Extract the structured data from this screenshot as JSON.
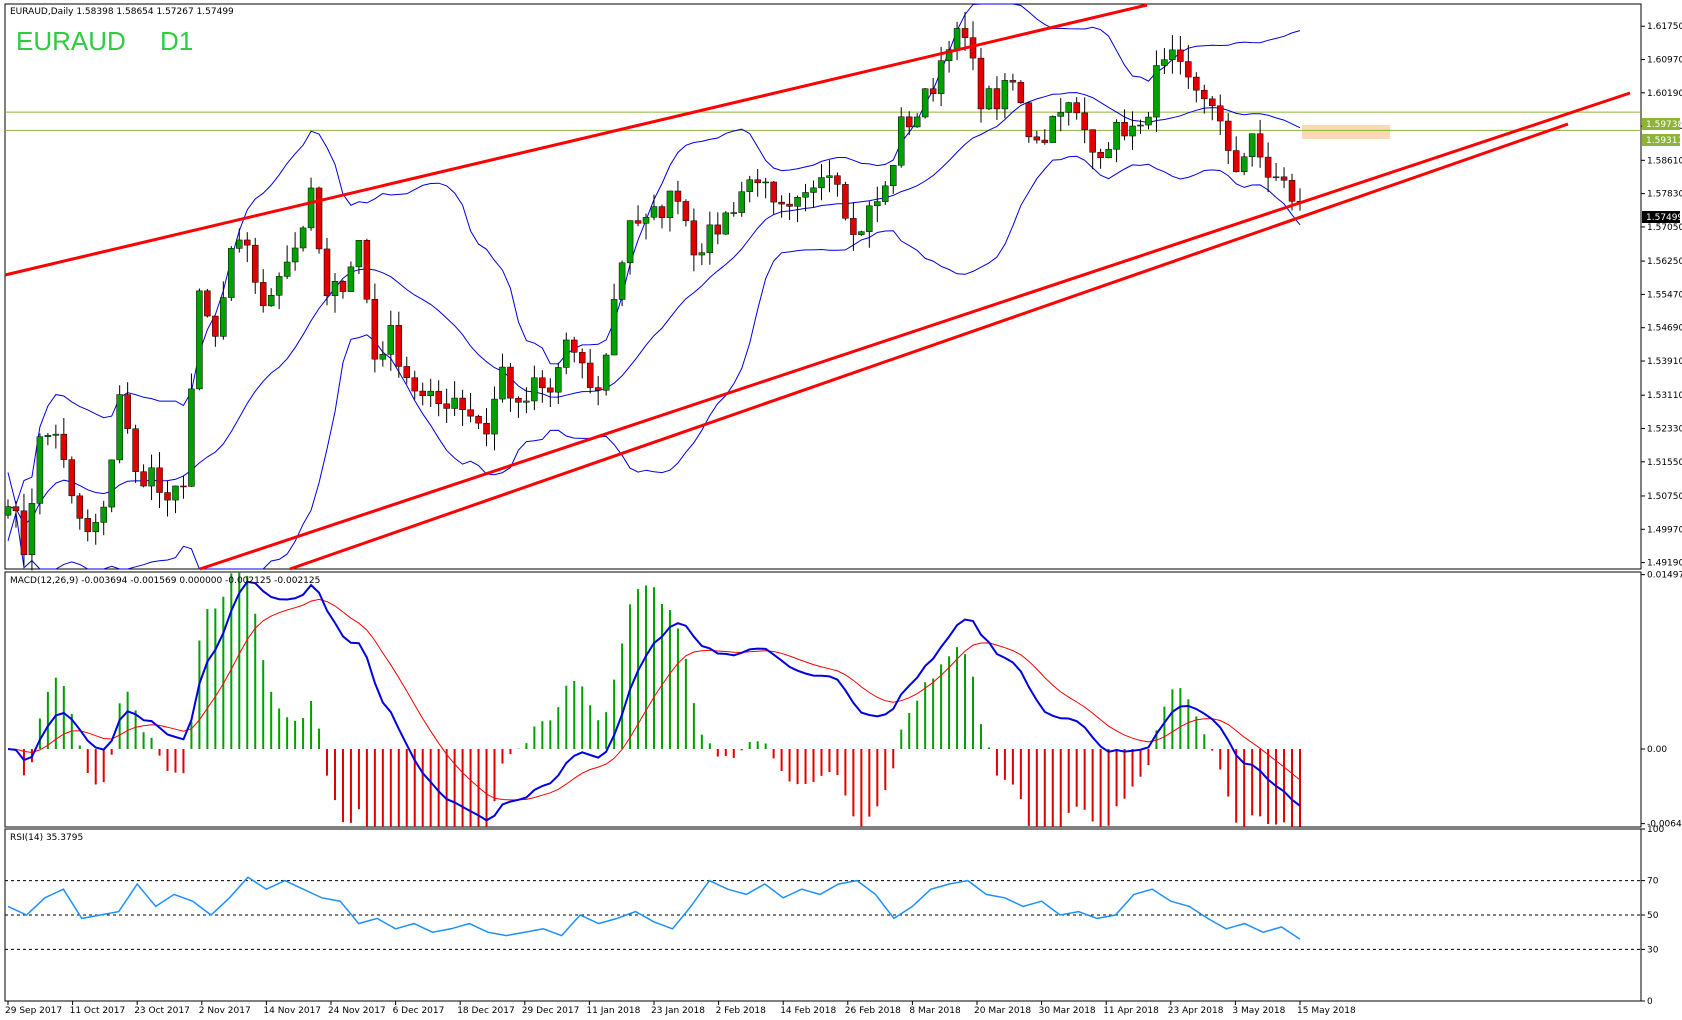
{
  "header": {
    "symbol_info": "EURAUD,Daily  1.58398 1.58654 1.57267 1.57499",
    "symbol": "EURAUD",
    "timeframe": "D1"
  },
  "price_labels": {
    "current": "1.57499",
    "level_upper": "1.59738",
    "level_lower": "1.59311"
  },
  "macd": {
    "label": "MACD(12,26,9) -0.003694 -0.001569 0.000000 -0.002125 -0.002125"
  },
  "rsi": {
    "label": "RSI(14) 35.3795"
  },
  "colors": {
    "bull": "#00a000",
    "bear": "#e00000",
    "trend": "#ff0000",
    "bands": "#0000e0",
    "levels": "#8db33a",
    "zone": "#fbd8b4",
    "macd_line": "#0000e0",
    "signal_line": "#ff0000",
    "rsi_line": "#1e90ff"
  },
  "chart_data": [
    {
      "type": "candlestick",
      "name": "price",
      "y_ticks": [
        "1.61750",
        "1.60970",
        "1.60190",
        "1.59410",
        "1.58610",
        "1.57830",
        "1.57050",
        "1.56250",
        "1.55470",
        "1.54690",
        "1.53910",
        "1.53110",
        "1.52330",
        "1.51550",
        "1.50750",
        "1.49970",
        "1.49190"
      ],
      "x_ticks": [
        "29 Sep 2017",
        "11 Oct 2017",
        "23 Oct 2017",
        "2 Nov 2017",
        "14 Nov 2017",
        "24 Nov 2017",
        "6 Dec 2017",
        "18 Dec 2017",
        "29 Dec 2017",
        "11 Jan 2018",
        "23 Jan 2018",
        "2 Feb 2018",
        "14 Feb 2018",
        "26 Feb 2018",
        "8 Mar 2018",
        "20 Mar 2018",
        "30 Mar 2018",
        "11 Apr 2018",
        "23 Apr 2018",
        "3 May 2018",
        "15 May 2018"
      ],
      "ylim": [
        1.4904,
        1.6227
      ],
      "levels": [
        1.59738,
        1.59311
      ],
      "anchors": [
        1.508,
        1.495,
        1.52,
        1.523,
        1.506,
        1.498,
        1.503,
        1.532,
        1.512,
        1.513,
        1.504,
        1.512,
        1.553,
        1.544,
        1.563,
        1.567,
        1.55,
        1.561,
        1.566,
        1.577,
        1.553,
        1.558,
        1.567,
        1.54,
        1.545,
        1.536,
        1.53,
        1.529,
        1.531,
        1.527,
        1.523,
        1.537,
        1.527,
        1.533,
        1.531,
        1.544,
        1.536,
        1.531,
        1.553,
        1.573,
        1.571,
        1.575,
        1.579,
        1.566,
        1.568,
        1.573,
        1.579,
        1.583,
        1.574,
        1.573,
        1.577,
        1.585,
        1.583,
        1.568,
        1.574,
        1.579,
        1.594,
        1.597,
        1.604,
        1.615,
        1.614,
        1.601,
        1.6,
        1.604,
        1.593,
        1.592,
        1.6,
        1.596,
        1.588,
        1.591,
        1.594,
        1.592,
        1.606,
        1.609,
        1.604,
        1.602,
        1.593,
        1.585,
        1.59,
        1.583,
        1.58,
        1.575
      ]
    },
    {
      "type": "macd",
      "name": "MACD(12,26,9)",
      "y_ticks": [
        "0.014974",
        "0.00",
        "-0.006411"
      ],
      "ylim": [
        -0.0067,
        0.0152
      ]
    },
    {
      "type": "rsi",
      "name": "RSI(14)",
      "y_ticks": [
        "100",
        "70",
        "50",
        "30",
        "0"
      ],
      "ylim": [
        0,
        100
      ],
      "levels": [
        70,
        50,
        30
      ],
      "anchors": [
        55,
        50,
        60,
        65,
        48,
        50,
        52,
        68,
        55,
        62,
        58,
        50,
        60,
        72,
        65,
        70,
        65,
        60,
        58,
        45,
        48,
        42,
        45,
        40,
        42,
        45,
        40,
        38,
        40,
        42,
        38,
        50,
        45,
        48,
        52,
        46,
        42,
        55,
        70,
        65,
        62,
        68,
        60,
        65,
        62,
        68,
        70,
        62,
        48,
        55,
        65,
        68,
        70,
        62,
        60,
        55,
        58,
        50,
        52,
        48,
        50,
        62,
        65,
        58,
        55,
        48,
        42,
        45,
        40,
        43,
        36
      ]
    }
  ]
}
